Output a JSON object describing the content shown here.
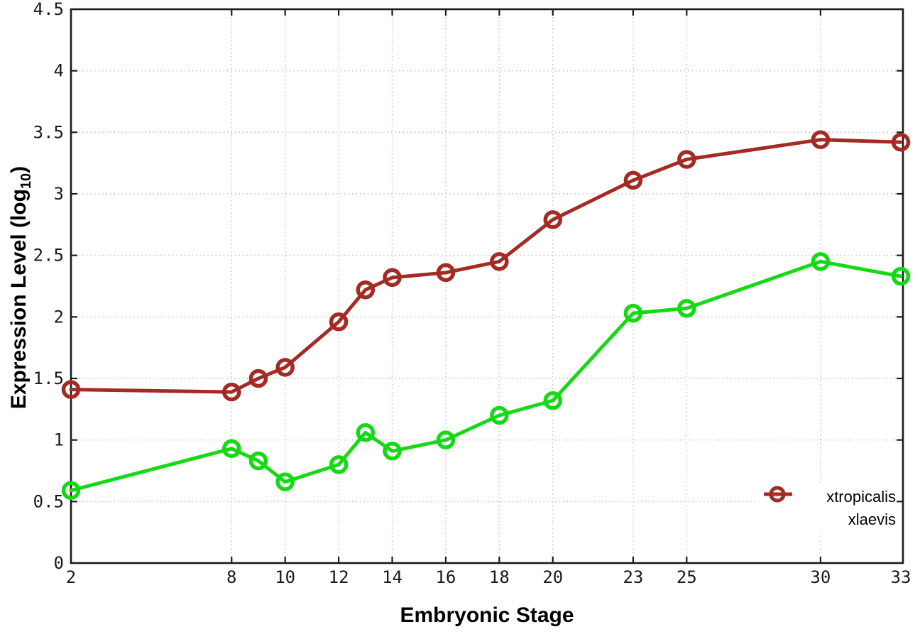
{
  "window": {
    "background": "#ffffff"
  },
  "chart_data": {
    "type": "line",
    "title": "",
    "xlabel": "Embryonic Stage",
    "ylabel": "Expression Level (log10)",
    "ylabel_parts": {
      "main": "Expression Level (log",
      "sub": "10",
      "close": ")"
    },
    "x": [
      2,
      8,
      9,
      10,
      12,
      13,
      14,
      16,
      18,
      20,
      23,
      25,
      30,
      33
    ],
    "series": [
      {
        "name": "xtropicalis",
        "color": "#15D915",
        "values": [
          0.59,
          0.93,
          0.83,
          0.66,
          0.8,
          1.06,
          0.91,
          1.0,
          1.2,
          1.32,
          2.03,
          2.07,
          2.45,
          2.33
        ]
      },
      {
        "name": "xlaevis",
        "color": "#A32B24",
        "values": [
          1.41,
          1.39,
          1.5,
          1.59,
          1.96,
          2.22,
          2.32,
          2.36,
          2.45,
          2.79,
          3.11,
          3.28,
          3.44,
          3.42
        ]
      }
    ],
    "xlim": [
      2,
      33
    ],
    "ylim": [
      0,
      4.5
    ],
    "xtick_values": [
      2,
      8,
      10,
      12,
      14,
      16,
      18,
      20,
      23,
      25,
      30,
      33
    ],
    "xtick_labels": [
      "2",
      "8",
      "10",
      "12",
      "14",
      "16",
      "18",
      "20",
      "23",
      "25",
      "30",
      "33"
    ],
    "ytick_values": [
      0,
      0.5,
      1,
      1.5,
      2,
      2.5,
      3,
      3.5,
      4,
      4.5
    ],
    "ytick_labels": [
      "0",
      "0.5",
      "1",
      "1.5",
      "2",
      "2.5",
      "3",
      "3.5",
      "4",
      "4.5"
    ],
    "grid": true,
    "grid_color": "#bfbfbf",
    "axis_color": "#1a1a1a",
    "tick_label_color": "#1a1a1a",
    "legend_position": "inside-bottom-right",
    "marker": "open-circle"
  }
}
